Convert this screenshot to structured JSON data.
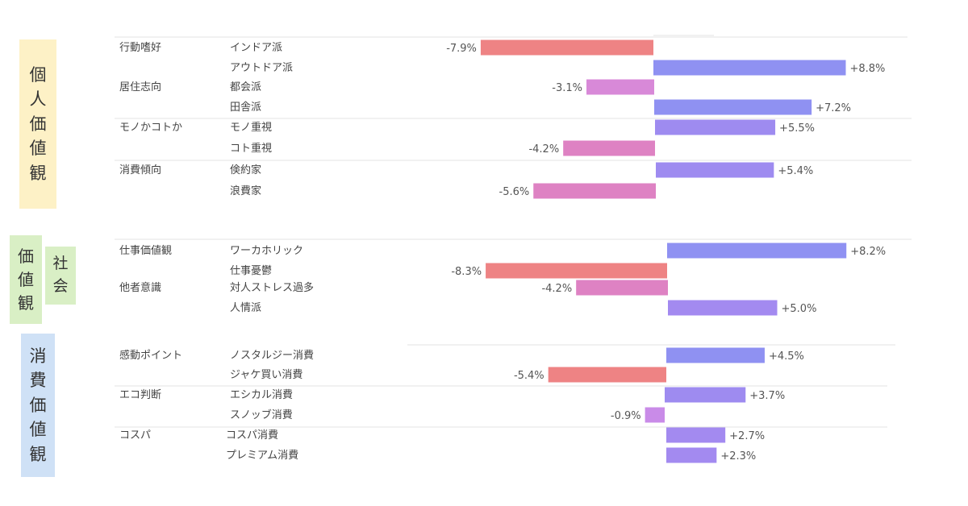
{
  "sections": [
    {
      "id": "personal",
      "label": "個人価値観",
      "label_chars": [
        "個",
        "人",
        "価",
        "値",
        "観"
      ],
      "color": "#fdf1c6"
    },
    {
      "id": "social",
      "label_chars_a": [
        "価",
        "値",
        "観"
      ],
      "label_chars_b": [
        "社",
        "会"
      ],
      "color": "#d9efc5"
    },
    {
      "id": "consumer",
      "label": "消費価値観",
      "label_chars": [
        "消",
        "費",
        "価",
        "値",
        "観"
      ],
      "color": "#cfe1f6"
    }
  ],
  "colors": {
    "negative_strong": "#ee8384",
    "negative_mid": "#de82c3",
    "negative_light": "#c98be8",
    "positive": "#8f91f2",
    "positive_alt": "#a38af0",
    "separator": "#e3e3e3"
  },
  "chart_data": {
    "type": "bar",
    "orientation": "horizontal",
    "value_unit": "%",
    "xlim": [
      -8.8,
      8.8
    ],
    "rows": [
      {
        "category": "行動嗜好",
        "item": "インドア派",
        "value": -7.9,
        "label": "-7.9%",
        "color": "#ee8384"
      },
      {
        "category": "",
        "item": "アウトドア派",
        "value": 8.8,
        "label": "+8.8%",
        "color": "#8f91f2"
      },
      {
        "category": "居住志向",
        "item": "都会派",
        "value": -3.1,
        "label": "-3.1%",
        "color": "#d889d8"
      },
      {
        "category": "",
        "item": "田舎派",
        "value": 7.2,
        "label": "+7.2%",
        "color": "#8f91f2"
      },
      {
        "category": "モノかコトか",
        "item": "モノ重視",
        "value": 5.5,
        "label": "+5.5%",
        "color": "#9e8bf0"
      },
      {
        "category": "",
        "item": "コト重視",
        "value": -4.2,
        "label": "-4.2%",
        "color": "#de82c3"
      },
      {
        "category": "消費傾向",
        "item": "倹約家",
        "value": 5.4,
        "label": "+5.4%",
        "color": "#9e8bf0"
      },
      {
        "category": "",
        "item": "浪費家",
        "value": -5.6,
        "label": "-5.6%",
        "color": "#de82c3"
      },
      {
        "category": "仕事価値観",
        "item": "ワーカホリック",
        "value": 8.2,
        "label": "+8.2%",
        "color": "#8f91f2"
      },
      {
        "category": "",
        "item": "仕事憂鬱",
        "value": -8.3,
        "label": "-8.3%",
        "color": "#ee8384"
      },
      {
        "category": "他者意識",
        "item": "対人ストレス過多",
        "value": -4.2,
        "label": "-4.2%",
        "color": "#de82c3"
      },
      {
        "category": "",
        "item": "人情派",
        "value": 5.0,
        "label": "+5.0%",
        "color": "#a38af0"
      },
      {
        "category": "感動ポイント",
        "item": "ノスタルジー消費",
        "value": 4.5,
        "label": "+4.5%",
        "color": "#8f91f2"
      },
      {
        "category": "",
        "item": "ジャケ買い消費",
        "value": -5.4,
        "label": "-5.4%",
        "color": "#ee8384"
      },
      {
        "category": "エコ判断",
        "item": "エシカル消費",
        "value": 3.7,
        "label": "+3.7%",
        "color": "#9e8bf0"
      },
      {
        "category": "",
        "item": "スノッブ消費",
        "value": -0.9,
        "label": "-0.9%",
        "color": "#c98be8"
      },
      {
        "category": "コスパ",
        "item": "コスパ消費",
        "value": 2.7,
        "label": "+2.7%",
        "color": "#a38af0"
      },
      {
        "category": "",
        "item": "プレミアム消費",
        "value": 2.3,
        "label": "+2.3%",
        "color": "#a38af0"
      }
    ]
  }
}
